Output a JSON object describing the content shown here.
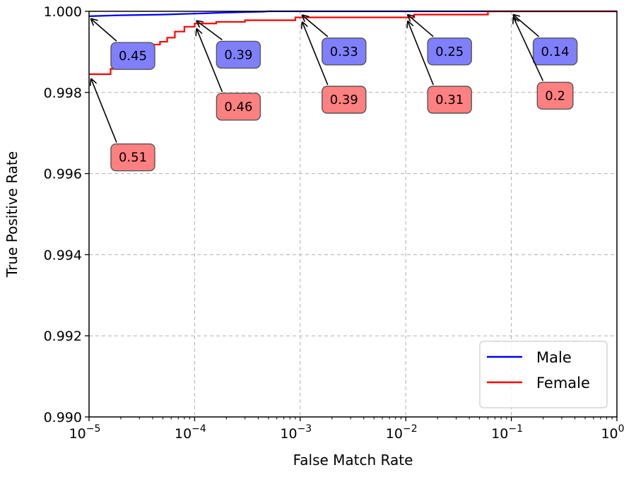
{
  "chart_data": {
    "type": "line",
    "xlabel": "False Match Rate",
    "ylabel": "True Positive Rate",
    "xscale": "log",
    "xlim": [
      1e-05,
      1
    ],
    "ylim": [
      0.99,
      1.0
    ],
    "grid": true,
    "legend_position": "bottom-right",
    "y_ticks": [
      {
        "value": 0.99,
        "label": "0.990"
      },
      {
        "value": 0.992,
        "label": "0.992"
      },
      {
        "value": 0.994,
        "label": "0.994"
      },
      {
        "value": 0.996,
        "label": "0.996"
      },
      {
        "value": 0.998,
        "label": "0.998"
      },
      {
        "value": 1.0,
        "label": "1.000"
      }
    ],
    "x_ticks": [
      {
        "value": 1e-05,
        "base": "10",
        "exp": "−5"
      },
      {
        "value": 0.0001,
        "base": "10",
        "exp": "−4"
      },
      {
        "value": 0.001,
        "base": "10",
        "exp": "−3"
      },
      {
        "value": 0.01,
        "base": "10",
        "exp": "−2"
      },
      {
        "value": 0.1,
        "base": "10",
        "exp": "−1"
      },
      {
        "value": 1,
        "base": "10",
        "exp": "0"
      }
    ],
    "series": [
      {
        "name": "Male",
        "color": "#0000ff",
        "points": [
          [
            1e-05,
            0.99988
          ],
          [
            1.8e-05,
            0.9999
          ],
          [
            5e-05,
            0.99992
          ],
          [
            9e-05,
            0.99994
          ],
          [
            0.00012,
            0.99995
          ],
          [
            0.0002,
            0.99997
          ],
          [
            0.0003,
            0.99998
          ],
          [
            0.00045,
            0.99999
          ],
          [
            0.0005,
            1.0
          ],
          [
            1,
            1.0
          ]
        ]
      },
      {
        "name": "Female",
        "color": "#ff0000",
        "points": [
          [
            1e-05,
            0.99845
          ],
          [
            1.6e-05,
            0.99845
          ],
          [
            1.6e-05,
            0.99858
          ],
          [
            1.9e-05,
            0.99858
          ],
          [
            1.9e-05,
            0.99865
          ],
          [
            2.5e-05,
            0.99865
          ],
          [
            2.5e-05,
            0.99875
          ],
          [
            3e-05,
            0.9988
          ],
          [
            3.3e-05,
            0.99888
          ],
          [
            3.6e-05,
            0.99905
          ],
          [
            3.6e-05,
            0.99918
          ],
          [
            4.7e-05,
            0.99918
          ],
          [
            4.7e-05,
            0.99925
          ],
          [
            5.5e-05,
            0.99925
          ],
          [
            5.5e-05,
            0.99935
          ],
          [
            6.5e-05,
            0.99935
          ],
          [
            6.5e-05,
            0.9995
          ],
          [
            8e-05,
            0.9995
          ],
          [
            8e-05,
            0.99962
          ],
          [
            0.0001,
            0.99962
          ],
          [
            0.0001,
            0.9997
          ],
          [
            0.00016,
            0.9997
          ],
          [
            0.00016,
            0.99974
          ],
          [
            0.0003,
            0.99974
          ],
          [
            0.0003,
            0.99978
          ],
          [
            0.0009,
            0.99978
          ],
          [
            0.0009,
            0.99985
          ],
          [
            0.012,
            0.99985
          ],
          [
            0.012,
            0.99992
          ],
          [
            0.06,
            0.99992
          ],
          [
            0.06,
            1.0
          ],
          [
            1,
            1.0
          ]
        ]
      },
      {
        "name": "",
        "color": "#800080",
        "points": [
          [
            1.9e-05,
            0.99858
          ],
          [
            1.9e-05,
            0.99865
          ],
          [
            2.5e-05,
            0.99865
          ],
          [
            2.5e-05,
            0.99875
          ],
          [
            3e-05,
            0.9988
          ],
          [
            3.3e-05,
            0.99888
          ],
          [
            3.6e-05,
            0.99905
          ],
          [
            3.6e-05,
            0.99918
          ]
        ]
      }
    ],
    "annotations": [
      {
        "text": "0.45",
        "series": "Male",
        "x": 1e-05,
        "y": 0.99988,
        "label_x": 2.6e-05,
        "label_y": 0.9989
      },
      {
        "text": "0.39",
        "series": "Male",
        "x": 0.0001,
        "y": 0.99983,
        "label_x": 0.00026,
        "label_y": 0.99893
      },
      {
        "text": "0.33",
        "series": "Male",
        "x": 0.001,
        "y": 0.99997,
        "label_x": 0.0026,
        "label_y": 0.99901
      },
      {
        "text": "0.25",
        "series": "Male",
        "x": 0.01,
        "y": 0.99998,
        "label_x": 0.026,
        "label_y": 0.99901
      },
      {
        "text": "0.14",
        "series": "Male",
        "x": 0.1,
        "y": 0.99998,
        "label_x": 0.26,
        "label_y": 0.99901
      },
      {
        "text": "0.51",
        "series": "Female",
        "x": 1e-05,
        "y": 0.9984,
        "label_x": 2.6e-05,
        "label_y": 0.9964
      },
      {
        "text": "0.46",
        "series": "Female",
        "x": 0.0001,
        "y": 0.99963,
        "label_x": 0.00026,
        "label_y": 0.99765
      },
      {
        "text": "0.39",
        "series": "Female",
        "x": 0.001,
        "y": 0.9998,
        "label_x": 0.0026,
        "label_y": 0.99782
      },
      {
        "text": "0.31",
        "series": "Female",
        "x": 0.01,
        "y": 0.99982,
        "label_x": 0.026,
        "label_y": 0.99782
      },
      {
        "text": "0.2",
        "series": "Female",
        "x": 0.1,
        "y": 0.99992,
        "label_x": 0.26,
        "label_y": 0.99792
      }
    ],
    "annotation_colors": {
      "Male": "#8080ff",
      "Female": "#ff8080"
    }
  }
}
